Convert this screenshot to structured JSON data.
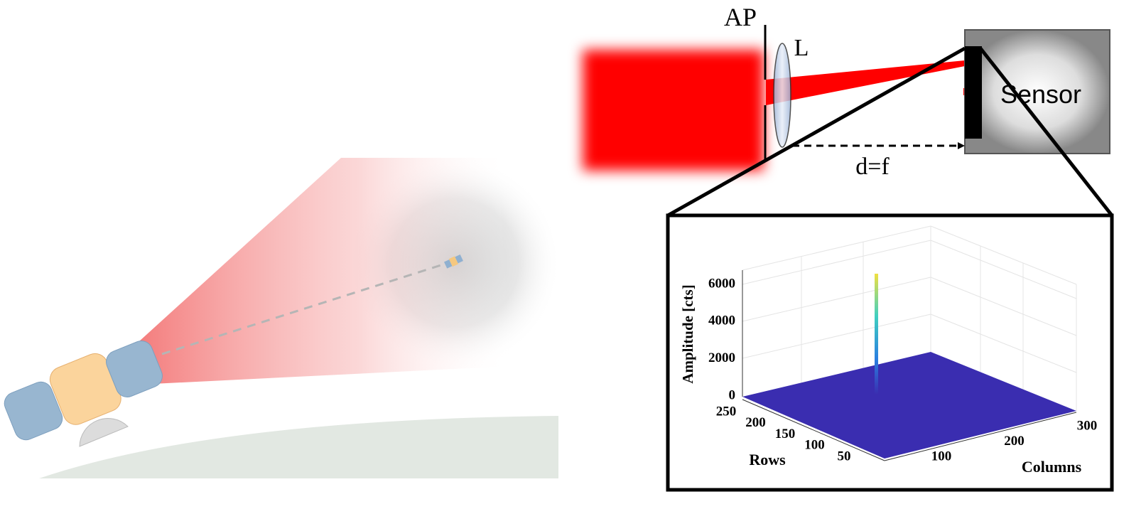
{
  "optics": {
    "aperture_label": "AP",
    "lens_label": "L",
    "sensor_label": "Sensor",
    "distance_label": "d=f"
  },
  "plot": {
    "z_label": "Amplitude [cts]",
    "rows_label": "Rows",
    "columns_label": "Columns",
    "z_ticks": [
      0,
      2000,
      4000,
      6000
    ],
    "row_ticks": [
      250,
      200,
      150,
      100,
      50
    ],
    "column_ticks": [
      100,
      200,
      300
    ]
  }
}
